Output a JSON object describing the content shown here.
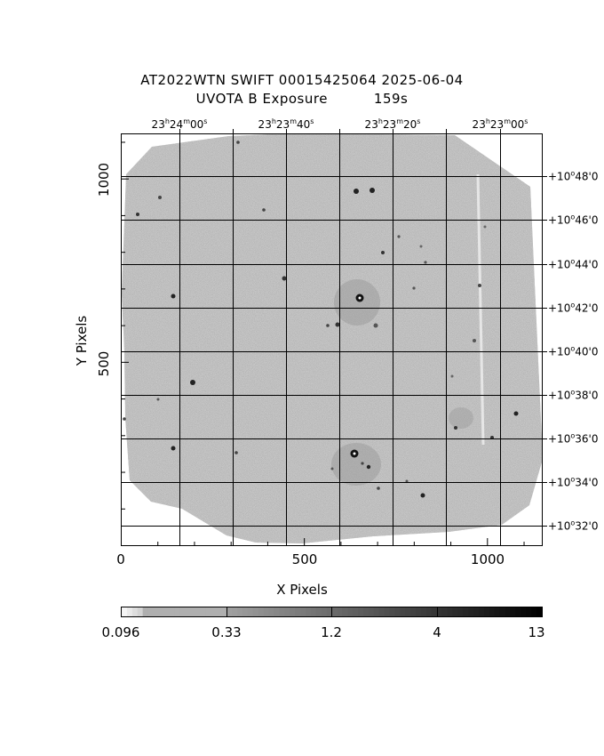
{
  "title": {
    "line1": "AT2022WTN SWIFT 00015425064 2025-06-04",
    "line2_filter": "UVOTA B Exposure",
    "line2_exposure": "159s"
  },
  "axes": {
    "xlabel": "X Pixels",
    "ylabel": "Y Pixels",
    "x_ticks": [
      "0",
      "500",
      "1000"
    ],
    "y_ticks": [
      "500",
      "1000"
    ],
    "ra_ticks": [
      {
        "h": "23",
        "m": "24",
        "s": "00"
      },
      {
        "h": "23",
        "m": "23",
        "s": "40"
      },
      {
        "h": "23",
        "m": "23",
        "s": "20"
      },
      {
        "h": "23",
        "m": "23",
        "s": "00"
      }
    ],
    "dec_ticks": [
      {
        "d": "+10",
        "m": "48",
        "s": "0"
      },
      {
        "d": "+10",
        "m": "46",
        "s": "0"
      },
      {
        "d": "+10",
        "m": "44",
        "s": "0"
      },
      {
        "d": "+10",
        "m": "42",
        "s": "0"
      },
      {
        "d": "+10",
        "m": "40",
        "s": "0"
      },
      {
        "d": "+10",
        "m": "38",
        "s": "0"
      },
      {
        "d": "+10",
        "m": "36",
        "s": "0"
      },
      {
        "d": "+10",
        "m": "34",
        "s": "0"
      },
      {
        "d": "+10",
        "m": "32",
        "s": "0"
      }
    ]
  },
  "colorbar": {
    "labels": [
      "0.096",
      "0.33",
      "1.2",
      "4",
      "13"
    ]
  },
  "colors": {
    "background_field": "#a9a9a9",
    "grid": "#000000",
    "frame": "#000000"
  }
}
